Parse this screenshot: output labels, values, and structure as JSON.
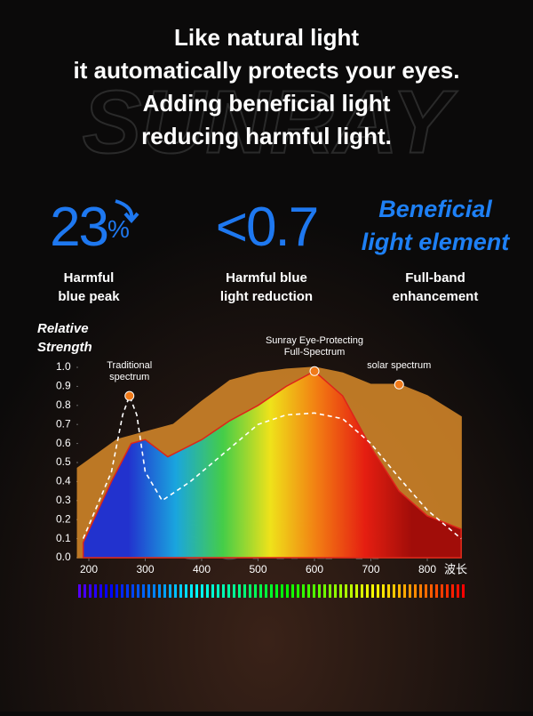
{
  "header": {
    "lines": [
      "Like natural light",
      "it automatically protects your eyes.",
      "Adding beneficial light",
      "reducing harmful light."
    ]
  },
  "stats": [
    {
      "value": "23",
      "unit": "%",
      "label_lines": [
        "Harmful",
        "blue peak"
      ]
    },
    {
      "value": "<0.7",
      "label_lines": [
        "Harmful blue",
        "light reduction"
      ]
    },
    {
      "value_lines": [
        "Beneficial",
        "light element"
      ],
      "label_lines": [
        "Full-band",
        "enhancement"
      ]
    }
  ],
  "chart_data": {
    "type": "area",
    "y_label_lines": [
      "Relative",
      "Strength"
    ],
    "x_label": "波长",
    "xlim": [
      180,
      860
    ],
    "ylim": [
      0,
      1
    ],
    "xticks": [
      200,
      300,
      400,
      500,
      600,
      700,
      800
    ],
    "yticks": [
      {
        "value": 0,
        "label": "0.0"
      },
      0.1,
      0.2,
      0.3,
      0.4,
      0.5,
      0.6,
      0.7,
      0.8,
      0.9,
      {
        "value": 1,
        "label": "1.0"
      }
    ],
    "series": [
      {
        "name": "solar spectrum",
        "color": "#d98a2a",
        "x": [
          180,
          250,
          300,
          350,
          400,
          450,
          500,
          550,
          600,
          650,
          700,
          750,
          800,
          860
        ],
        "values": [
          0.47,
          0.62,
          0.66,
          0.7,
          0.82,
          0.93,
          0.97,
          0.99,
          1.0,
          0.97,
          0.91,
          0.91,
          0.85,
          0.74
        ]
      },
      {
        "name": "Sunray Eye-Protecting Full-Spectrum",
        "color": "#e0201a",
        "gradient": [
          "#1a2fd8",
          "#12a8e8",
          "#3fd24a",
          "#f2e81a",
          "#f57d12",
          "#e81a10",
          "#a00808"
        ],
        "x": [
          190,
          240,
          275,
          300,
          340,
          400,
          450,
          500,
          550,
          600,
          650,
          700,
          750,
          800,
          860
        ],
        "values": [
          0.08,
          0.4,
          0.6,
          0.62,
          0.53,
          0.62,
          0.72,
          0.8,
          0.9,
          0.98,
          0.85,
          0.58,
          0.35,
          0.22,
          0.15
        ]
      },
      {
        "name": "Traditional spectrum",
        "color": "#ffffff",
        "x": [
          190,
          240,
          260,
          272,
          285,
          300,
          330,
          380,
          420,
          460,
          500,
          550,
          600,
          650,
          700,
          750,
          800,
          860
        ],
        "values": [
          0.1,
          0.45,
          0.75,
          0.85,
          0.75,
          0.45,
          0.3,
          0.4,
          0.5,
          0.6,
          0.7,
          0.75,
          0.76,
          0.73,
          0.6,
          0.42,
          0.25,
          0.1
        ]
      }
    ],
    "annotations": [
      {
        "lines": [
          "Traditional",
          "spectrum"
        ],
        "x": 272,
        "y": 0.85
      },
      {
        "lines": [
          "Sunray Eye-Protecting",
          "Full-Spectrum"
        ],
        "x": 600,
        "y": 0.98
      },
      {
        "lines": [
          "solar spectrum"
        ],
        "x": 750,
        "y": 0.91
      }
    ],
    "marker_color": "#f07a1a"
  }
}
